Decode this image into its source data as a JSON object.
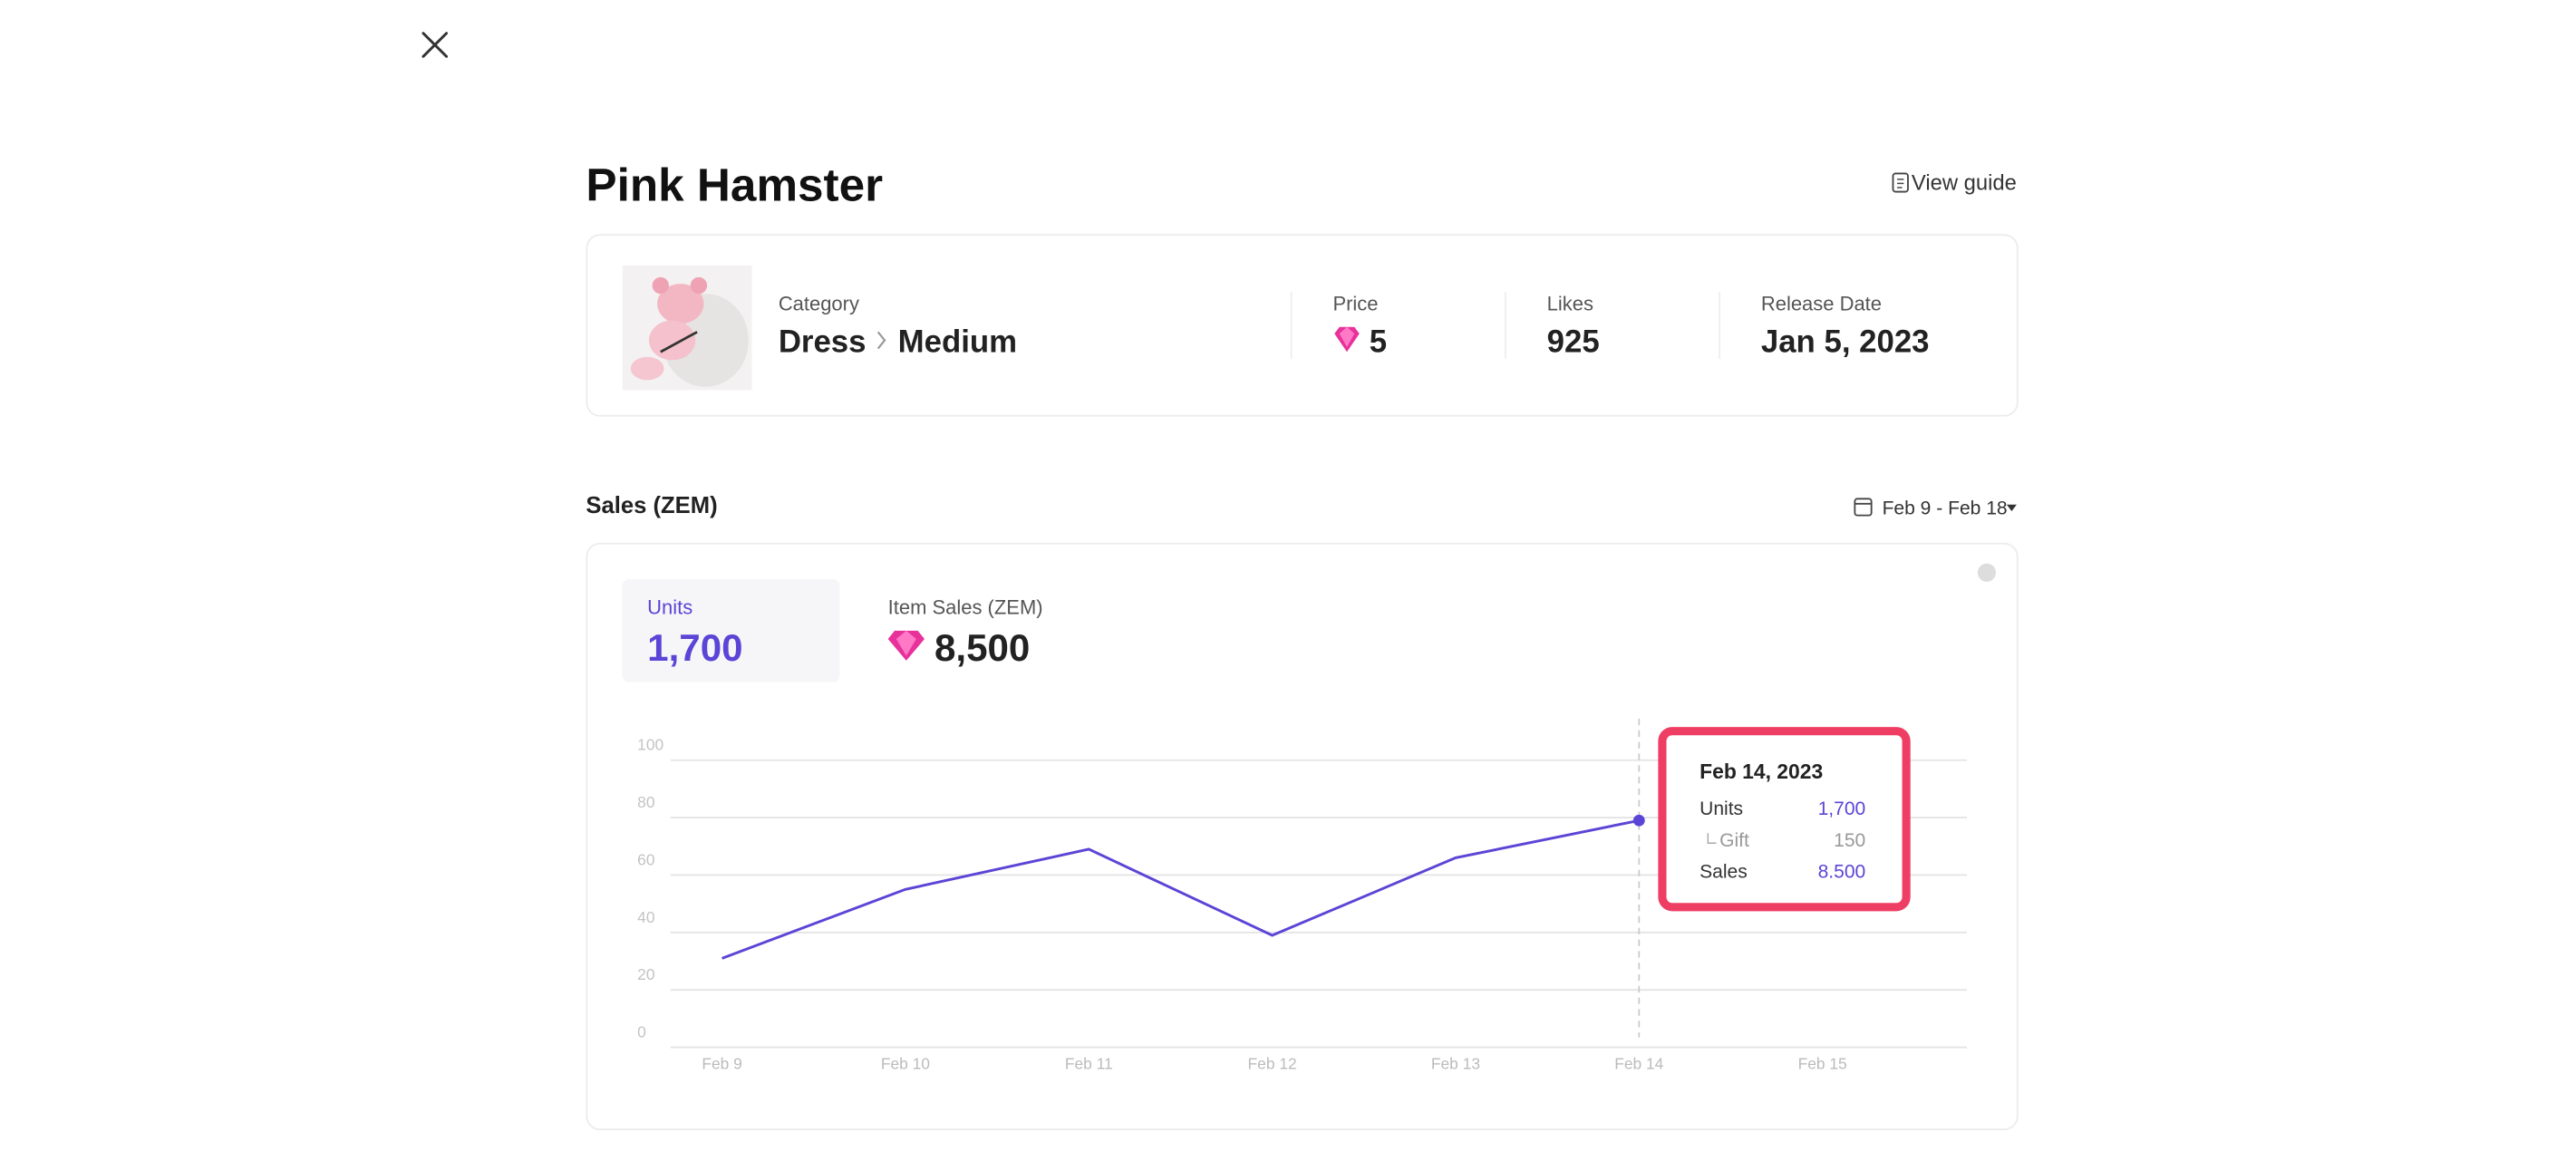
{
  "header": {
    "title": "Pink Hamster",
    "guide": "View guide"
  },
  "item": {
    "category_label": "Category",
    "category": "Dress",
    "subcategory": "Medium",
    "price_label": "Price",
    "price": 5,
    "likes_label": "Likes",
    "likes": 925,
    "release_label": "Release Date",
    "release_date": "Jan 5, 2023"
  },
  "sales": {
    "title": "Sales (ZEM)",
    "date_range": "Feb 9 - Feb 18",
    "units_label": "Units",
    "units": "1,700",
    "item_sales_label": "Item Sales (ZEM)",
    "item_sales": "8,500"
  },
  "tooltip": {
    "date": "Feb 14, 2023",
    "rows": [
      {
        "label": "Units",
        "value": "1,700"
      },
      {
        "label": "Gift",
        "value": "150"
      },
      {
        "label": "Sales",
        "value": "8.500"
      }
    ]
  },
  "chart_data": {
    "type": "line",
    "categories": [
      "Feb 9",
      "Feb 10",
      "Feb 11",
      "Feb 12",
      "Feb 13",
      "Feb 14",
      "Feb 15"
    ],
    "values": [
      31,
      55,
      69,
      39,
      66,
      79,
      null
    ],
    "color": "#5b45d6",
    "ylim": [
      0,
      100
    ],
    "yticks": [
      0,
      20,
      40,
      60,
      80,
      100
    ],
    "grid": true
  }
}
